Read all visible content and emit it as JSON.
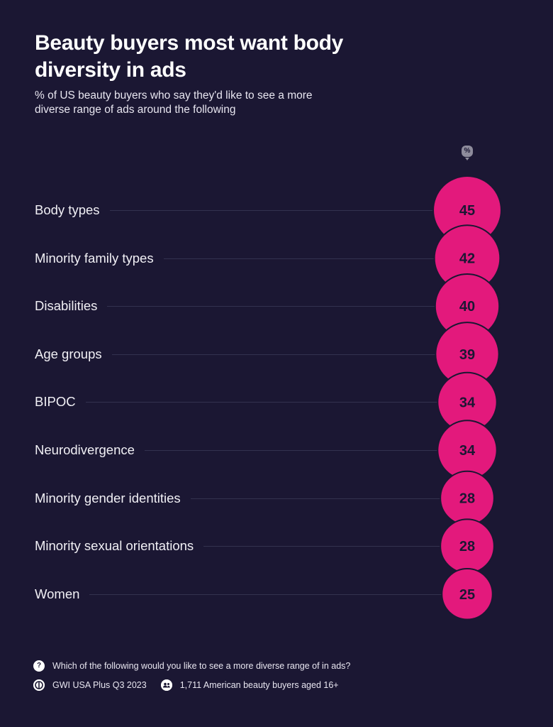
{
  "header": {
    "title": "Beauty buyers most want body diversity in ads",
    "subtitle": "% of US beauty buyers who say they'd like to see a more diverse range of ads around the following",
    "unit_badge": "%"
  },
  "chart_data": {
    "type": "bubble",
    "title": "Beauty buyers most want body diversity in ads",
    "subtitle": "% of US beauty buyers who say they'd like to see a more diverse range of ads around the following",
    "unit": "%",
    "categories": [
      "Body types",
      "Minority family types",
      "Disabilities",
      "Age groups",
      "BIPOC",
      "Neurodivergence",
      "Minority gender identities",
      "Minority sexual orientations",
      "Women"
    ],
    "values": [
      45,
      42,
      40,
      39,
      34,
      34,
      28,
      28,
      25
    ],
    "series": [
      {
        "name": "% of US beauty buyers",
        "values": [
          45,
          42,
          40,
          39,
          34,
          34,
          28,
          28,
          25
        ],
        "color": "#e3197c"
      }
    ],
    "xlabel": "",
    "ylabel": "",
    "grid": false,
    "legend": null
  },
  "colors": {
    "background": "#1b1733",
    "bubble": "#e3197c",
    "bubble_text": "#1b1733",
    "leader_line": "#33324f"
  },
  "footer": {
    "question_icon": "?",
    "question": "Which of the following would you like to see a more diverse range of in ads?",
    "source_icon": "gwi-logo-icon",
    "source": "GWI USA Plus Q3 2023",
    "audience_icon": "people-icon",
    "audience": "1,711 American beauty buyers aged 16+"
  }
}
